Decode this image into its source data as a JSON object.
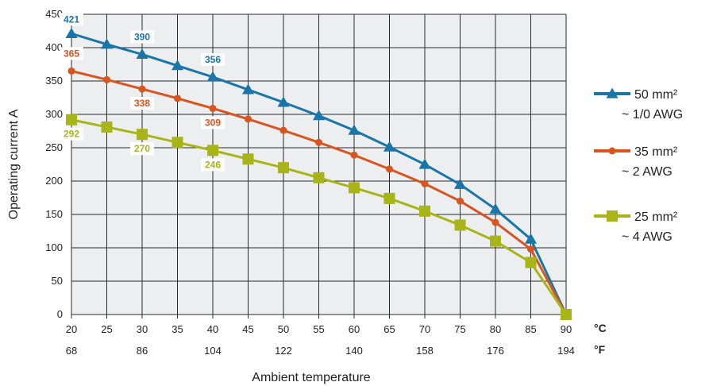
{
  "chart_data": {
    "type": "line",
    "xlabel": "Ambient temperature",
    "ylabel": "Operating current A",
    "x_unit": "°C",
    "x_secondary_unit": "°F",
    "x": [
      20,
      25,
      30,
      35,
      40,
      45,
      50,
      55,
      60,
      65,
      70,
      75,
      80,
      85,
      90
    ],
    "x_ticks": [
      "20",
      "25",
      "30",
      "35",
      "40",
      "45",
      "50",
      "55",
      "60",
      "65",
      "70",
      "75",
      "80",
      "85",
      "90"
    ],
    "x_secondary_ticks": [
      {
        "at": 20,
        "label": "68"
      },
      {
        "at": 30,
        "label": "86"
      },
      {
        "at": 40,
        "label": "104"
      },
      {
        "at": 50,
        "label": "122"
      },
      {
        "at": 60,
        "label": "140"
      },
      {
        "at": 70,
        "label": "158"
      },
      {
        "at": 80,
        "label": "176"
      },
      {
        "at": 90,
        "label": "194"
      }
    ],
    "xlim": [
      20,
      90
    ],
    "ylim": [
      0,
      450
    ],
    "y_ticks": [
      "0",
      "50",
      "100",
      "150",
      "200",
      "250",
      "300",
      "350",
      "400",
      "450"
    ],
    "grid": true,
    "legend_position": "right",
    "series": [
      {
        "name": "50 mm²",
        "name_sub": "~ 1/0 AWG",
        "marker": "triangle",
        "color": "#1a75a8",
        "values": [
          421,
          405,
          390,
          373,
          356,
          337,
          318,
          298,
          276,
          251,
          225,
          195,
          158,
          113,
          0
        ],
        "labels": [
          {
            "x": 20,
            "text": "421"
          },
          {
            "x": 30,
            "text": "390"
          },
          {
            "x": 40,
            "text": "356"
          }
        ]
      },
      {
        "name": "35 mm²",
        "name_sub": "~ 2 AWG",
        "marker": "circle",
        "color": "#d9541e",
        "values": [
          365,
          352,
          338,
          324,
          309,
          293,
          276,
          258,
          239,
          218,
          196,
          170,
          138,
          98,
          0
        ],
        "labels": [
          {
            "x": 20,
            "text": "365"
          },
          {
            "x": 30,
            "text": "338"
          },
          {
            "x": 40,
            "text": "309"
          }
        ]
      },
      {
        "name": "25 mm²",
        "name_sub": "~ 4 AWG",
        "marker": "square",
        "color": "#a8b418",
        "values": [
          292,
          281,
          270,
          258,
          246,
          233,
          220,
          205,
          190,
          174,
          155,
          134,
          110,
          78,
          0
        ],
        "labels": [
          {
            "x": 20,
            "text": "292"
          },
          {
            "x": 30,
            "text": "270"
          },
          {
            "x": 40,
            "text": "246"
          }
        ]
      }
    ]
  }
}
